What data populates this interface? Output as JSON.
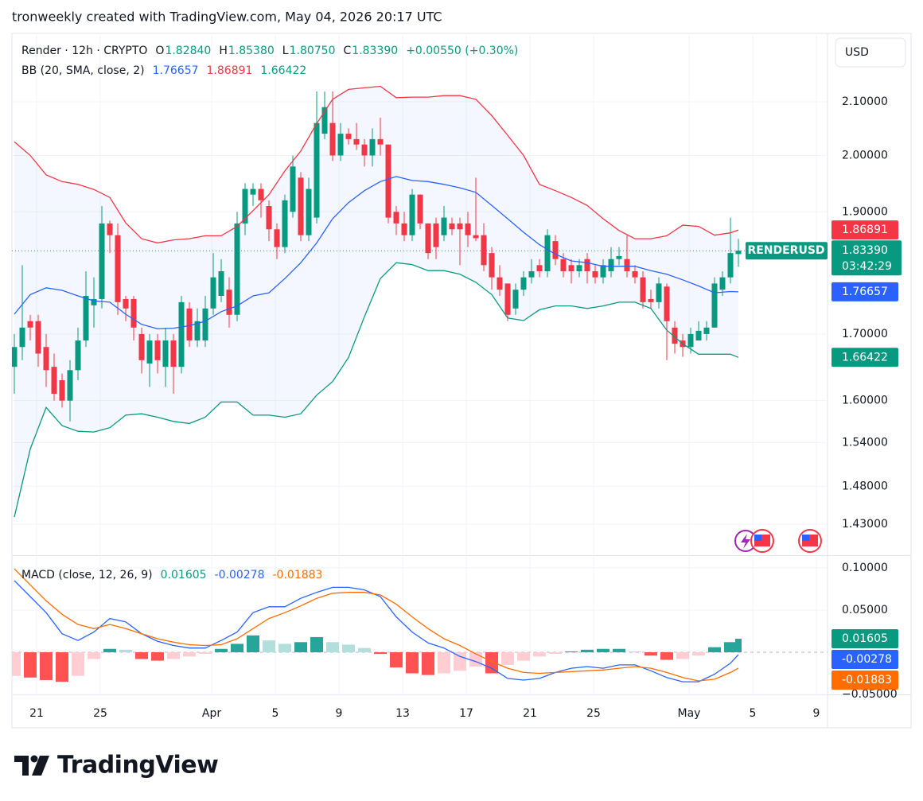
{
  "header": {
    "title": "tronweekly created with TradingView.com, May 04, 2026 20:17 UTC"
  },
  "footer": {
    "brand": "TradingView"
  },
  "price_scale": {
    "currency": "USD"
  },
  "chart_data": [
    {
      "type": "candlestick",
      "log_scale": true,
      "grid": true,
      "symbol": "Render · 12h · CRYPTO",
      "legend": [
        {
          "key": "O",
          "value": "1.82840"
        },
        {
          "key": "H",
          "value": "1.85380"
        },
        {
          "key": "L",
          "value": "1.80750"
        },
        {
          "key": "C",
          "value": "1.83390"
        }
      ],
      "change": "+0.00550 (+0.30%)",
      "indicator": "BB (20, SMA, close, 2)",
      "symbol_tag": "RENDERUSD",
      "countdown": "03:42:29",
      "up_color": "#089981",
      "down_color": "#f23645",
      "band_fill": "#2962ff",
      "xlim": [
        -0.3,
        102.2
      ],
      "xticks": [
        {
          "value": 2.8,
          "label": "21"
        },
        {
          "value": 10.8,
          "label": "25"
        },
        {
          "value": 24.8,
          "label": "Apr"
        },
        {
          "value": 32.8,
          "label": "5"
        },
        {
          "value": 40.8,
          "label": "9"
        },
        {
          "value": 48.8,
          "label": "13"
        },
        {
          "value": 56.8,
          "label": "17"
        },
        {
          "value": 64.8,
          "label": "21"
        },
        {
          "value": 72.8,
          "label": "25"
        },
        {
          "value": 84.8,
          "label": "May"
        },
        {
          "value": 92.8,
          "label": "5"
        },
        {
          "value": 100.8,
          "label": "9"
        }
      ],
      "ylim": [
        1.39,
        2.235
      ],
      "yticks": [
        {
          "value": 2.1,
          "label": "2.10000"
        },
        {
          "value": 2.0,
          "label": "2.00000"
        },
        {
          "value": 1.9,
          "label": "1.90000"
        },
        {
          "value": 1.7,
          "label": "1.70000"
        },
        {
          "value": 1.6,
          "label": "1.60000"
        },
        {
          "value": 1.54,
          "label": "1.54000"
        },
        {
          "value": 1.48,
          "label": "1.48000"
        },
        {
          "value": 1.43,
          "label": "1.43000"
        }
      ],
      "candles": [
        [
          1.65,
          1.7,
          1.61,
          1.68
        ],
        [
          1.68,
          1.81,
          1.66,
          1.71
        ],
        [
          1.72,
          1.73,
          1.69,
          1.71
        ],
        [
          1.72,
          1.73,
          1.65,
          1.67
        ],
        [
          1.68,
          1.7,
          1.62,
          1.645
        ],
        [
          1.65,
          1.67,
          1.6,
          1.61
        ],
        [
          1.63,
          1.64,
          1.59,
          1.6
        ],
        [
          1.6,
          1.66,
          1.57,
          1.645
        ],
        [
          1.645,
          1.71,
          1.63,
          1.69
        ],
        [
          1.69,
          1.8,
          1.68,
          1.76
        ],
        [
          1.745,
          1.79,
          1.71,
          1.755
        ],
        [
          1.755,
          1.91,
          1.74,
          1.88
        ],
        [
          1.88,
          1.885,
          1.83,
          1.86
        ],
        [
          1.86,
          1.88,
          1.73,
          1.75
        ],
        [
          1.755,
          1.76,
          1.72,
          1.74
        ],
        [
          1.755,
          1.76,
          1.69,
          1.71
        ],
        [
          1.7,
          1.71,
          1.64,
          1.66
        ],
        [
          1.655,
          1.7,
          1.62,
          1.69
        ],
        [
          1.69,
          1.7,
          1.64,
          1.66
        ],
        [
          1.65,
          1.71,
          1.62,
          1.69
        ],
        [
          1.69,
          1.7,
          1.61,
          1.65
        ],
        [
          1.65,
          1.76,
          1.64,
          1.75
        ],
        [
          1.74,
          1.75,
          1.68,
          1.69
        ],
        [
          1.69,
          1.74,
          1.68,
          1.72
        ],
        [
          1.69,
          1.76,
          1.68,
          1.74
        ],
        [
          1.74,
          1.83,
          1.73,
          1.79
        ],
        [
          1.76,
          1.82,
          1.75,
          1.8
        ],
        [
          1.77,
          1.79,
          1.71,
          1.73
        ],
        [
          1.73,
          1.9,
          1.72,
          1.88
        ],
        [
          1.88,
          1.95,
          1.86,
          1.94
        ],
        [
          1.93,
          1.95,
          1.91,
          1.94
        ],
        [
          1.94,
          1.95,
          1.89,
          1.92
        ],
        [
          1.91,
          1.92,
          1.85,
          1.87
        ],
        [
          1.87,
          1.88,
          1.82,
          1.84
        ],
        [
          1.84,
          1.93,
          1.83,
          1.92
        ],
        [
          1.9,
          2.0,
          1.89,
          1.98
        ],
        [
          1.96,
          1.97,
          1.85,
          1.86
        ],
        [
          1.86,
          1.96,
          1.85,
          1.94
        ],
        [
          1.89,
          2.12,
          1.88,
          2.06
        ],
        [
          2.04,
          2.12,
          2.03,
          2.09
        ],
        [
          2.06,
          2.12,
          1.99,
          2.0
        ],
        [
          2.0,
          2.06,
          1.99,
          2.04
        ],
        [
          2.04,
          2.05,
          2.02,
          2.03
        ],
        [
          2.03,
          2.06,
          2.01,
          2.02
        ],
        [
          2.02,
          2.03,
          1.98,
          2.0
        ],
        [
          2.0,
          2.05,
          1.98,
          2.03
        ],
        [
          2.03,
          2.07,
          2.0,
          2.02
        ],
        [
          2.02,
          2.02,
          1.88,
          1.89
        ],
        [
          1.9,
          1.91,
          1.86,
          1.88
        ],
        [
          1.88,
          1.9,
          1.85,
          1.86
        ],
        [
          1.86,
          1.94,
          1.85,
          1.93
        ],
        [
          1.93,
          1.93,
          1.87,
          1.88
        ],
        [
          1.88,
          1.88,
          1.82,
          1.83
        ],
        [
          1.88,
          1.89,
          1.82,
          1.84
        ],
        [
          1.86,
          1.91,
          1.85,
          1.89
        ],
        [
          1.88,
          1.89,
          1.86,
          1.87
        ],
        [
          1.88,
          1.89,
          1.81,
          1.87
        ],
        [
          1.88,
          1.9,
          1.84,
          1.86
        ],
        [
          1.86,
          1.96,
          1.85,
          1.855
        ],
        [
          1.86,
          1.88,
          1.8,
          1.81
        ],
        [
          1.83,
          1.84,
          1.77,
          1.79
        ],
        [
          1.79,
          1.81,
          1.76,
          1.77
        ],
        [
          1.78,
          1.78,
          1.72,
          1.73
        ],
        [
          1.74,
          1.78,
          1.73,
          1.77
        ],
        [
          1.77,
          1.8,
          1.76,
          1.79
        ],
        [
          1.79,
          1.82,
          1.78,
          1.8
        ],
        [
          1.81,
          1.82,
          1.79,
          1.8
        ],
        [
          1.8,
          1.87,
          1.79,
          1.86
        ],
        [
          1.85,
          1.86,
          1.81,
          1.82
        ],
        [
          1.82,
          1.83,
          1.79,
          1.8
        ],
        [
          1.81,
          1.82,
          1.78,
          1.8
        ],
        [
          1.8,
          1.82,
          1.79,
          1.81
        ],
        [
          1.82,
          1.83,
          1.78,
          1.8
        ],
        [
          1.8,
          1.81,
          1.78,
          1.79
        ],
        [
          1.79,
          1.82,
          1.78,
          1.81
        ],
        [
          1.8,
          1.84,
          1.79,
          1.82
        ],
        [
          1.82,
          1.84,
          1.81,
          1.825
        ],
        [
          1.82,
          1.86,
          1.79,
          1.8
        ],
        [
          1.8,
          1.81,
          1.78,
          1.79
        ],
        [
          1.79,
          1.8,
          1.74,
          1.75
        ],
        [
          1.755,
          1.77,
          1.74,
          1.75
        ],
        [
          1.75,
          1.79,
          1.74,
          1.78
        ],
        [
          1.775,
          1.78,
          1.66,
          1.72
        ],
        [
          1.71,
          1.72,
          1.67,
          1.685
        ],
        [
          1.69,
          1.7,
          1.665,
          1.68
        ],
        [
          1.68,
          1.71,
          1.67,
          1.7
        ],
        [
          1.69,
          1.72,
          1.69,
          1.705
        ],
        [
          1.7,
          1.72,
          1.69,
          1.71
        ],
        [
          1.71,
          1.79,
          1.71,
          1.78
        ],
        [
          1.77,
          1.8,
          1.76,
          1.79
        ],
        [
          1.79,
          1.89,
          1.78,
          1.83
        ],
        [
          1.8284,
          1.8538,
          1.8075,
          1.8339
        ]
      ],
      "x": [
        0,
        2,
        4,
        6,
        8,
        10,
        12,
        14,
        16,
        18,
        20,
        22,
        24,
        26,
        28,
        30,
        32,
        34,
        36,
        38,
        40,
        42,
        44,
        46,
        48,
        50,
        52,
        54,
        56,
        58,
        60,
        62,
        64,
        66,
        68,
        70,
        72,
        74,
        76,
        78,
        80,
        82,
        84,
        86,
        88,
        90,
        91
      ],
      "series": [
        {
          "color": "#2962ff",
          "values": [
            1.731,
            1.762,
            1.773,
            1.769,
            1.76,
            1.752,
            1.75,
            1.731,
            1.715,
            1.708,
            1.709,
            1.713,
            1.72,
            1.735,
            1.744,
            1.76,
            1.765,
            1.788,
            1.814,
            1.847,
            1.888,
            1.916,
            1.937,
            1.953,
            1.962,
            1.955,
            1.953,
            1.948,
            1.942,
            1.934,
            1.911,
            1.888,
            1.865,
            1.844,
            1.828,
            1.817,
            1.814,
            1.808,
            1.808,
            1.808,
            1.801,
            1.795,
            1.786,
            1.776,
            1.765,
            1.767,
            1.76657
          ]
        },
        {
          "color": "#f23645",
          "values": [
            2.025,
            2.0,
            1.965,
            1.953,
            1.948,
            1.939,
            1.925,
            1.881,
            1.854,
            1.847,
            1.852,
            1.854,
            1.859,
            1.859,
            1.875,
            1.902,
            1.93,
            1.972,
            2.008,
            2.059,
            2.105,
            2.124,
            2.127,
            2.13,
            2.108,
            2.109,
            2.109,
            2.112,
            2.112,
            2.105,
            2.074,
            2.037,
            2.0,
            1.948,
            1.937,
            1.925,
            1.911,
            1.888,
            1.868,
            1.854,
            1.854,
            1.859,
            1.877,
            1.875,
            1.86,
            1.864,
            1.86891
          ]
        },
        {
          "color": "#089981",
          "values": [
            1.439,
            1.531,
            1.59,
            1.564,
            1.556,
            1.555,
            1.561,
            1.579,
            1.581,
            1.576,
            1.57,
            1.567,
            1.576,
            1.598,
            1.598,
            1.579,
            1.579,
            1.576,
            1.581,
            1.608,
            1.628,
            1.664,
            1.727,
            1.788,
            1.814,
            1.811,
            1.801,
            1.801,
            1.795,
            1.782,
            1.762,
            1.725,
            1.721,
            1.738,
            1.744,
            1.744,
            1.74,
            1.744,
            1.75,
            1.75,
            1.74,
            1.706,
            1.685,
            1.669,
            1.669,
            1.669,
            1.66422
          ]
        }
      ]
    },
    {
      "type": "macd",
      "grid": true,
      "indicator": "MACD (close, 12, 26, 9)",
      "ylim": [
        -0.05,
        0.1132
      ],
      "yticks": [
        {
          "value": 0.1,
          "label": "0.10000"
        },
        {
          "value": 0.05,
          "label": "0.05000"
        },
        {
          "value": -0.05,
          "label": "−0.05000"
        }
      ],
      "x": [
        0,
        2,
        4,
        6,
        8,
        10,
        12,
        14,
        16,
        18,
        20,
        22,
        24,
        26,
        28,
        30,
        32,
        34,
        36,
        38,
        40,
        42,
        44,
        46,
        48,
        50,
        52,
        54,
        56,
        58,
        60,
        62,
        64,
        66,
        68,
        70,
        72,
        74,
        76,
        78,
        80,
        82,
        84,
        86,
        88,
        90,
        91
      ],
      "series": [
        {
          "kind": "histogram",
          "color": "#089981",
          "colors": [
            "#26a69a",
            "#b2dfdb",
            "#ffcdd2",
            "#ff5252"
          ],
          "values": [
            -0.028,
            -0.03,
            -0.033,
            -0.035,
            -0.028,
            -0.008,
            0.004,
            0.003,
            -0.008,
            -0.01,
            -0.008,
            -0.005,
            -0.002,
            0.004,
            0.01,
            0.02,
            0.014,
            0.01,
            0.012,
            0.018,
            0.012,
            0.009,
            0.005,
            -0.002,
            -0.018,
            -0.025,
            -0.027,
            -0.025,
            -0.022,
            -0.017,
            -0.025,
            -0.015,
            -0.01,
            -0.005,
            -0.002,
            0.001,
            0.003,
            0.004,
            0.004,
            0.001,
            -0.004,
            -0.009,
            -0.008,
            -0.004,
            0.006,
            0.012,
            0.01605
          ]
        },
        {
          "kind": "line",
          "color": "#2962ff",
          "values": [
            0.085,
            0.066,
            0.047,
            0.022,
            0.014,
            0.024,
            0.04,
            0.036,
            0.022,
            0.013,
            0.008,
            0.005,
            0.005,
            0.014,
            0.024,
            0.047,
            0.054,
            0.054,
            0.064,
            0.071,
            0.077,
            0.077,
            0.074,
            0.066,
            0.042,
            0.024,
            0.011,
            0.005,
            -0.005,
            -0.011,
            -0.019,
            -0.031,
            -0.033,
            -0.031,
            -0.024,
            -0.019,
            -0.017,
            -0.019,
            -0.015,
            -0.015,
            -0.022,
            -0.03,
            -0.035,
            -0.035,
            -0.026,
            -0.013,
            -0.00278
          ]
        },
        {
          "kind": "line",
          "color": "#ff6d00",
          "values": [
            0.099,
            0.08,
            0.061,
            0.045,
            0.033,
            0.028,
            0.033,
            0.028,
            0.022,
            0.016,
            0.012,
            0.009,
            0.008,
            0.009,
            0.016,
            0.028,
            0.04,
            0.047,
            0.055,
            0.064,
            0.07,
            0.071,
            0.071,
            0.068,
            0.057,
            0.042,
            0.028,
            0.016,
            0.008,
            -0.002,
            -0.011,
            -0.019,
            -0.024,
            -0.025,
            -0.024,
            -0.023,
            -0.022,
            -0.021,
            -0.019,
            -0.017,
            -0.019,
            -0.024,
            -0.03,
            -0.034,
            -0.032,
            -0.024,
            -0.01883
          ]
        }
      ]
    }
  ]
}
